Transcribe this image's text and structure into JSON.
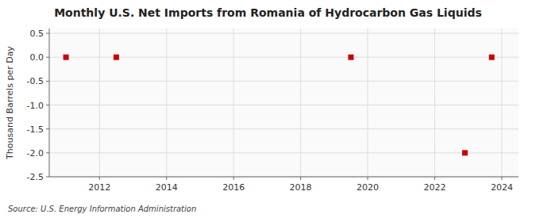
{
  "chart_data": {
    "type": "scatter",
    "title": "Monthly U.S. Net Imports from Romania of Hydrocarbon Gas Liquids",
    "ylabel": "Thousand Barrels per Day",
    "annotation": "Source: U.S. Energy Information Administration",
    "x": [
      2011.0,
      2012.5,
      2019.5,
      2022.9,
      2023.7
    ],
    "values": [
      0.0,
      0.0,
      0.0,
      -2.0,
      0.0
    ],
    "color": "#cc0000",
    "marker": "square",
    "xlim": [
      2010.5,
      2024.5
    ],
    "ylim": [
      -2.5,
      0.6
    ],
    "xticks": [
      2012,
      2014,
      2016,
      2018,
      2020,
      2022,
      2024
    ],
    "yticks": [
      0.5,
      {
        "value": 0.0,
        "label": "0.0"
      },
      -0.5,
      {
        "value": -1.0,
        "label": "-1.0"
      },
      -1.5,
      {
        "value": -2.0,
        "label": "-2.0"
      },
      -2.5
    ],
    "grid": true
  }
}
